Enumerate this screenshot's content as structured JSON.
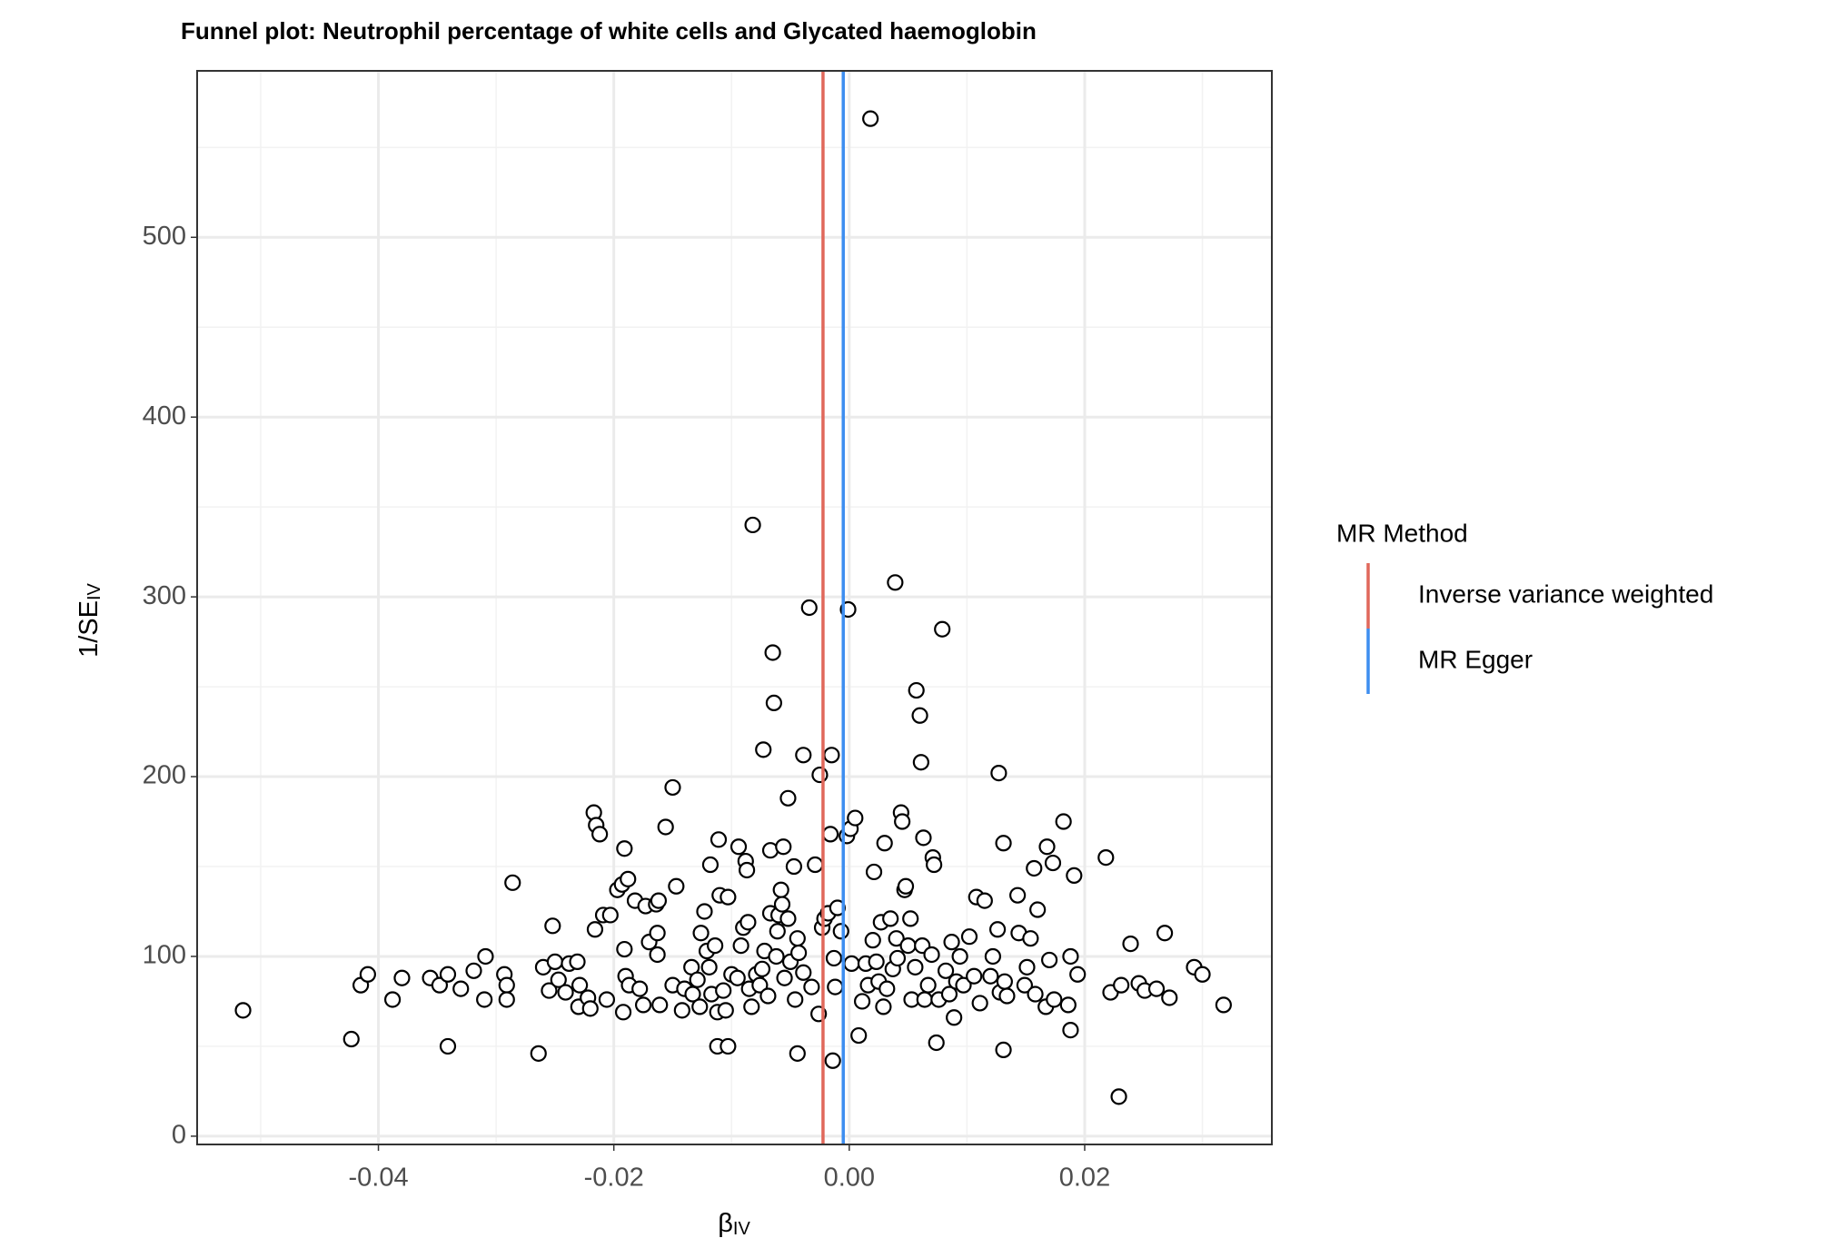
{
  "chart_data": {
    "type": "scatter",
    "title": "Funnel plot: Neutrophil percentage of white cells and Glycated haemoglobin",
    "xlabel": {
      "main": "β",
      "sub": "IV"
    },
    "ylabel": {
      "main": "1/SE",
      "sub": "IV"
    },
    "xlim": [
      -0.0554,
      0.0359
    ],
    "ylim": [
      -4.6,
      592.6
    ],
    "xticks": [
      -0.04,
      -0.02,
      {
        "value": 0,
        "label": "0.00"
      },
      0.02
    ],
    "yticks": [
      0,
      100,
      200,
      300,
      400,
      500
    ],
    "x_minor_grid": [
      -0.05,
      -0.03,
      -0.01,
      0.01,
      0.03
    ],
    "y_minor_grid": [
      50,
      150,
      250,
      350,
      450,
      550
    ],
    "grid": true,
    "point_fill": "#ffffff",
    "point_stroke": "#000000",
    "legend_title": "MR Method",
    "legend_position": "right",
    "lines": [
      {
        "name": "Inverse variance weighted",
        "color": "#e0685b",
        "value": -0.00223
      },
      {
        "name": "MR Egger",
        "color": "#3d8ef0",
        "value": -0.00051
      }
    ],
    "x": [
      -0.0515,
      -0.0423,
      -0.0415,
      -0.0409,
      -0.0388,
      -0.038,
      -0.0356,
      -0.0348,
      -0.0341,
      -0.0341,
      -0.033,
      -0.0319,
      -0.031,
      -0.0309,
      -0.0293,
      -0.0291,
      -0.0291,
      -0.0286,
      -0.0264,
      -0.026,
      -0.0255,
      -0.0252,
      -0.025,
      -0.0247,
      -0.0241,
      -0.0238,
      -0.0231,
      -0.0229,
      -0.023,
      -0.0222,
      -0.022,
      -0.0217,
      -0.0215,
      -0.0212,
      -0.0216,
      -0.0209,
      -0.0206,
      -0.0203,
      -0.0197,
      -0.0193,
      -0.0192,
      -0.0191,
      -0.0191,
      -0.019,
      -0.0188,
      -0.0187,
      -0.0182,
      -0.0178,
      -0.0175,
      -0.0173,
      -0.017,
      -0.0164,
      -0.0163,
      -0.0163,
      -0.0162,
      -0.0161,
      -0.0156,
      -0.015,
      -0.015,
      -0.0147,
      -0.0142,
      -0.014,
      -0.0134,
      -0.0133,
      -0.0129,
      -0.0127,
      -0.0126,
      -0.0123,
      -0.0121,
      -0.0119,
      -0.0118,
      -0.0117,
      -0.0114,
      -0.0112,
      -0.0112,
      -0.0111,
      -0.011,
      -0.0107,
      -0.0105,
      -0.0103,
      -0.0103,
      -0.01,
      -0.0095,
      -0.0094,
      -0.0092,
      -0.009,
      -0.0088,
      -0.0087,
      -0.0086,
      -0.0085,
      -0.0083,
      -0.0082,
      -0.0079,
      -0.0076,
      -0.0074,
      -0.0072,
      -0.0073,
      -0.0069,
      -0.0067,
      -0.0067,
      -0.0065,
      -0.0064,
      -0.0062,
      -0.0061,
      -0.006,
      -0.0058,
      -0.0057,
      -0.0056,
      -0.0055,
      -0.0052,
      -0.0052,
      -0.005,
      -0.0047,
      -0.0046,
      -0.0044,
      -0.0044,
      -0.0043,
      -0.0039,
      -0.0039,
      -0.0034,
      -0.0032,
      -0.0029,
      -0.0026,
      -0.0025,
      -0.0023,
      -0.0021,
      -0.0018,
      -0.0016,
      -0.0015,
      -0.0014,
      -0.0013,
      -0.0012,
      -0.001,
      -0.0007,
      -0.0002,
      -0.0001,
      0.0001,
      0.0002,
      0.0005,
      0.0008,
      0.0011,
      0.0014,
      0.0016,
      0.0018,
      0.002,
      0.0021,
      0.0023,
      0.0025,
      0.0027,
      0.0029,
      0.003,
      0.0032,
      0.0035,
      0.0037,
      0.0039,
      0.004,
      0.0041,
      0.0044,
      0.0045,
      0.0047,
      0.0048,
      0.005,
      0.0052,
      0.0053,
      0.0056,
      0.0057,
      0.006,
      0.0061,
      0.0062,
      0.0063,
      0.0064,
      0.0067,
      0.007,
      0.0071,
      0.0072,
      0.0074,
      0.0076,
      0.0079,
      0.0082,
      0.0085,
      0.0087,
      0.0089,
      0.0091,
      0.0094,
      0.0097,
      0.0102,
      0.0106,
      0.0108,
      0.0111,
      0.0115,
      0.012,
      0.0122,
      0.0126,
      0.0127,
      0.0128,
      0.0131,
      0.0131,
      0.0132,
      0.0134,
      0.0143,
      0.0144,
      0.0149,
      0.0151,
      0.0154,
      0.0157,
      0.0158,
      0.016,
      0.0167,
      0.0168,
      0.017,
      0.0173,
      0.0174,
      0.0182,
      0.0186,
      0.0188,
      0.0188,
      0.0191,
      0.0194,
      0.0218,
      0.0222,
      0.0229,
      0.0231,
      0.0239,
      0.0246,
      0.0251,
      0.0261,
      0.0268,
      0.0272,
      0.0293,
      0.03,
      0.0318
    ],
    "values": [
      70,
      54,
      84,
      90,
      76,
      88,
      88,
      84,
      90,
      50,
      82,
      92,
      76,
      100,
      90,
      84,
      76,
      141,
      46,
      94,
      81,
      117,
      97,
      87,
      80,
      96,
      97,
      84,
      72,
      77,
      71,
      180,
      173,
      168,
      115,
      123,
      76,
      123,
      137,
      140,
      69,
      104,
      160,
      89,
      143,
      84,
      131,
      82,
      73,
      128,
      108,
      129,
      101,
      113,
      131,
      73,
      172,
      194,
      84,
      139,
      70,
      82,
      94,
      79,
      87,
      72,
      113,
      125,
      103,
      94,
      151,
      79,
      106,
      69,
      50,
      165,
      134,
      81,
      70,
      50,
      133,
      90,
      88,
      161,
      106,
      116,
      153,
      148,
      119,
      82,
      72,
      340,
      90,
      84,
      93,
      103,
      215,
      78,
      159,
      124,
      269,
      241,
      100,
      114,
      123,
      137,
      129,
      161,
      88,
      188,
      121,
      97,
      150,
      76,
      46,
      110,
      102,
      212,
      91,
      294,
      83,
      151,
      68,
      201,
      116,
      121,
      124,
      168,
      212,
      42,
      99,
      83,
      127,
      114,
      167,
      293,
      171,
      96,
      177,
      56,
      75,
      96,
      84,
      566,
      109,
      147,
      97,
      86,
      119,
      72,
      163,
      82,
      121,
      93,
      308,
      110,
      99,
      180,
      175,
      137,
      139,
      106,
      121,
      76,
      94,
      248,
      234,
      208,
      106,
      166,
      76,
      84,
      101,
      155,
      151,
      52,
      76,
      282,
      92,
      79,
      108,
      66,
      86,
      100,
      84,
      111,
      89,
      133,
      74,
      131,
      89,
      100,
      115,
      202,
      80,
      163,
      48,
      86,
      78,
      134,
      113,
      84,
      94,
      110,
      149,
      79,
      126,
      72,
      161,
      98,
      152,
      76,
      175,
      73,
      59,
      100,
      145,
      90,
      155,
      80,
      22,
      84,
      107,
      85,
      81,
      82,
      113,
      77,
      94,
      90,
      73
    ]
  }
}
